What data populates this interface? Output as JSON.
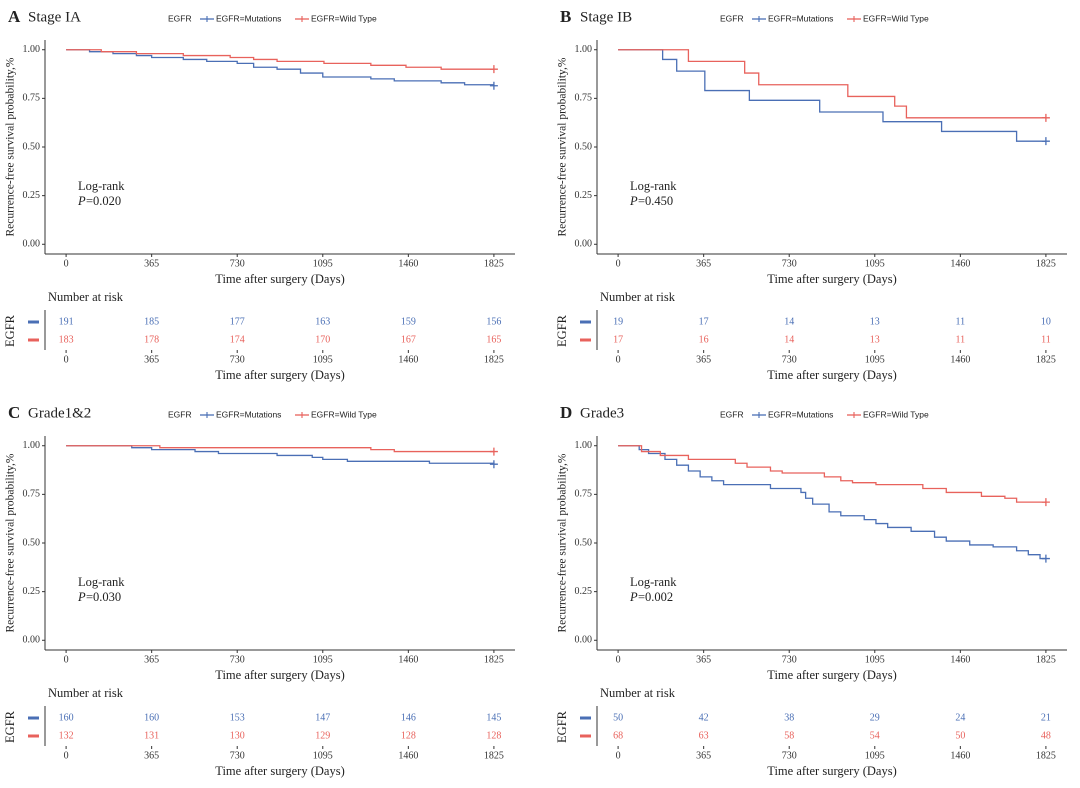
{
  "chart_data": [
    {
      "type": "step",
      "label": "A",
      "title": "Stage IA",
      "legend_title": "EGFR",
      "ylabel": "Recurrence-free survival probability,%",
      "xlabel": "Time after surgery (Days)",
      "annotation": "Log-rank",
      "p_symbol": "P",
      "p_text": "=0.020",
      "xlim": [
        -90,
        1915
      ],
      "ylim": [
        -0.05,
        1.05
      ],
      "xticks": [
        0,
        365,
        730,
        1095,
        1460,
        1825
      ],
      "yticks": [
        {
          "value": 0,
          "label": "0.00"
        },
        {
          "value": 0.25,
          "label": "0.25"
        },
        {
          "value": 0.5,
          "label": "0.50"
        },
        {
          "value": 0.75,
          "label": "0.75"
        },
        {
          "value": 1,
          "label": "1.00"
        }
      ],
      "risk_title": "Number at risk",
      "risk_ylabel": "EGFR",
      "risk_xlabel": "Time after surgery (Days)",
      "series": [
        {
          "name": "EGFR=Mutations",
          "color": "#4a6fb5",
          "x": [
            0,
            100,
            200,
            300,
            365,
            500,
            600,
            730,
            800,
            900,
            1000,
            1095,
            1300,
            1400,
            1600,
            1700,
            1825
          ],
          "values": [
            1,
            0.99,
            0.98,
            0.97,
            0.96,
            0.95,
            0.94,
            0.93,
            0.91,
            0.9,
            0.88,
            0.86,
            0.85,
            0.84,
            0.83,
            0.82,
            0.815
          ],
          "at_risk": [
            191,
            185,
            177,
            163,
            159,
            156
          ]
        },
        {
          "name": "EGFR=Wild Type",
          "color": "#e8625c",
          "x": [
            0,
            150,
            300,
            500,
            700,
            800,
            900,
            1100,
            1300,
            1450,
            1600,
            1825
          ],
          "values": [
            1,
            0.99,
            0.98,
            0.97,
            0.96,
            0.95,
            0.94,
            0.93,
            0.92,
            0.91,
            0.9,
            0.9
          ],
          "at_risk": [
            183,
            178,
            174,
            170,
            167,
            165
          ]
        }
      ]
    },
    {
      "type": "step",
      "label": "B",
      "title": "Stage IB",
      "legend_title": "EGFR",
      "ylabel": "Recurrence-free survival probability,%",
      "xlabel": "Time after surgery (Days)",
      "annotation": "Log-rank",
      "p_symbol": "P",
      "p_text": "=0.450",
      "xlim": [
        -90,
        1915
      ],
      "ylim": [
        -0.05,
        1.05
      ],
      "xticks": [
        0,
        365,
        730,
        1095,
        1460,
        1825
      ],
      "yticks": [
        {
          "value": 0,
          "label": "0.00"
        },
        {
          "value": 0.25,
          "label": "0.25"
        },
        {
          "value": 0.5,
          "label": "0.50"
        },
        {
          "value": 0.75,
          "label": "0.75"
        },
        {
          "value": 1,
          "label": "1.00"
        }
      ],
      "risk_title": "Number at risk",
      "risk_ylabel": "EGFR",
      "risk_xlabel": "Time after surgery (Days)",
      "series": [
        {
          "name": "EGFR=Mutations",
          "color": "#4a6fb5",
          "x": [
            0,
            190,
            250,
            370,
            560,
            860,
            1130,
            1380,
            1700,
            1825
          ],
          "values": [
            1,
            0.95,
            0.89,
            0.79,
            0.74,
            0.68,
            0.63,
            0.58,
            0.53,
            0.53
          ],
          "at_risk": [
            19,
            17,
            14,
            13,
            11,
            10
          ]
        },
        {
          "name": "EGFR=Wild Type",
          "color": "#e8625c",
          "x": [
            0,
            300,
            540,
            600,
            980,
            1180,
            1230,
            1825
          ],
          "values": [
            1,
            0.94,
            0.88,
            0.82,
            0.76,
            0.71,
            0.65,
            0.65
          ],
          "at_risk": [
            17,
            16,
            14,
            13,
            11,
            11
          ]
        }
      ]
    },
    {
      "type": "step",
      "label": "C",
      "title": "Grade1&2",
      "legend_title": "EGFR",
      "ylabel": "Recurrence-free survival probability,%",
      "xlabel": "Time after surgery (Days)",
      "annotation": "Log-rank",
      "p_symbol": "P",
      "p_text": "=0.030",
      "xlim": [
        -90,
        1915
      ],
      "ylim": [
        -0.05,
        1.05
      ],
      "xticks": [
        0,
        365,
        730,
        1095,
        1460,
        1825
      ],
      "yticks": [
        {
          "value": 0,
          "label": "0.00"
        },
        {
          "value": 0.25,
          "label": "0.25"
        },
        {
          "value": 0.5,
          "label": "0.50"
        },
        {
          "value": 0.75,
          "label": "0.75"
        },
        {
          "value": 1,
          "label": "1.00"
        }
      ],
      "risk_title": "Number at risk",
      "risk_ylabel": "EGFR",
      "risk_xlabel": "Time after surgery (Days)",
      "series": [
        {
          "name": "EGFR=Mutations",
          "color": "#4a6fb5",
          "x": [
            0,
            280,
            365,
            550,
            650,
            900,
            1050,
            1095,
            1200,
            1550,
            1825
          ],
          "values": [
            1,
            0.99,
            0.98,
            0.97,
            0.96,
            0.95,
            0.94,
            0.93,
            0.92,
            0.91,
            0.905
          ],
          "at_risk": [
            160,
            160,
            153,
            147,
            146,
            145
          ]
        },
        {
          "name": "EGFR=Wild Type",
          "color": "#e8625c",
          "x": [
            0,
            400,
            1300,
            1400,
            1825
          ],
          "values": [
            1,
            0.99,
            0.98,
            0.97,
            0.97
          ],
          "at_risk": [
            132,
            131,
            130,
            129,
            128,
            128
          ]
        }
      ]
    },
    {
      "type": "step",
      "label": "D",
      "title": "Grade3",
      "legend_title": "EGFR",
      "ylabel": "Recurrence-free survival probability,%",
      "xlabel": "Time after surgery (Days)",
      "annotation": "Log-rank",
      "p_symbol": "P",
      "p_text": "=0.002",
      "xlim": [
        -90,
        1915
      ],
      "ylim": [
        -0.05,
        1.05
      ],
      "xticks": [
        0,
        365,
        730,
        1095,
        1460,
        1825
      ],
      "yticks": [
        {
          "value": 0,
          "label": "0.00"
        },
        {
          "value": 0.25,
          "label": "0.25"
        },
        {
          "value": 0.5,
          "label": "0.50"
        },
        {
          "value": 0.75,
          "label": "0.75"
        },
        {
          "value": 1,
          "label": "1.00"
        }
      ],
      "risk_title": "Number at risk",
      "risk_ylabel": "EGFR",
      "risk_xlabel": "Time after surgery (Days)",
      "series": [
        {
          "name": "EGFR=Mutations",
          "color": "#4a6fb5",
          "x": [
            0,
            90,
            130,
            200,
            250,
            300,
            350,
            400,
            450,
            650,
            780,
            800,
            830,
            900,
            950,
            1050,
            1100,
            1150,
            1250,
            1350,
            1400,
            1500,
            1600,
            1700,
            1750,
            1800,
            1825
          ],
          "values": [
            1,
            0.98,
            0.96,
            0.93,
            0.9,
            0.87,
            0.84,
            0.82,
            0.8,
            0.78,
            0.76,
            0.73,
            0.7,
            0.66,
            0.64,
            0.62,
            0.6,
            0.58,
            0.56,
            0.53,
            0.51,
            0.49,
            0.48,
            0.46,
            0.44,
            0.42,
            0.42
          ],
          "at_risk": [
            50,
            42,
            38,
            29,
            24,
            21
          ]
        },
        {
          "name": "EGFR=Wild Type",
          "color": "#e8625c",
          "x": [
            0,
            100,
            180,
            300,
            500,
            550,
            650,
            700,
            880,
            950,
            1000,
            1100,
            1300,
            1400,
            1550,
            1650,
            1700,
            1825
          ],
          "values": [
            1,
            0.97,
            0.95,
            0.93,
            0.91,
            0.89,
            0.87,
            0.86,
            0.84,
            0.82,
            0.81,
            0.8,
            0.78,
            0.76,
            0.74,
            0.73,
            0.71,
            0.71
          ],
          "at_risk": [
            68,
            63,
            58,
            54,
            50,
            48
          ]
        }
      ]
    }
  ]
}
